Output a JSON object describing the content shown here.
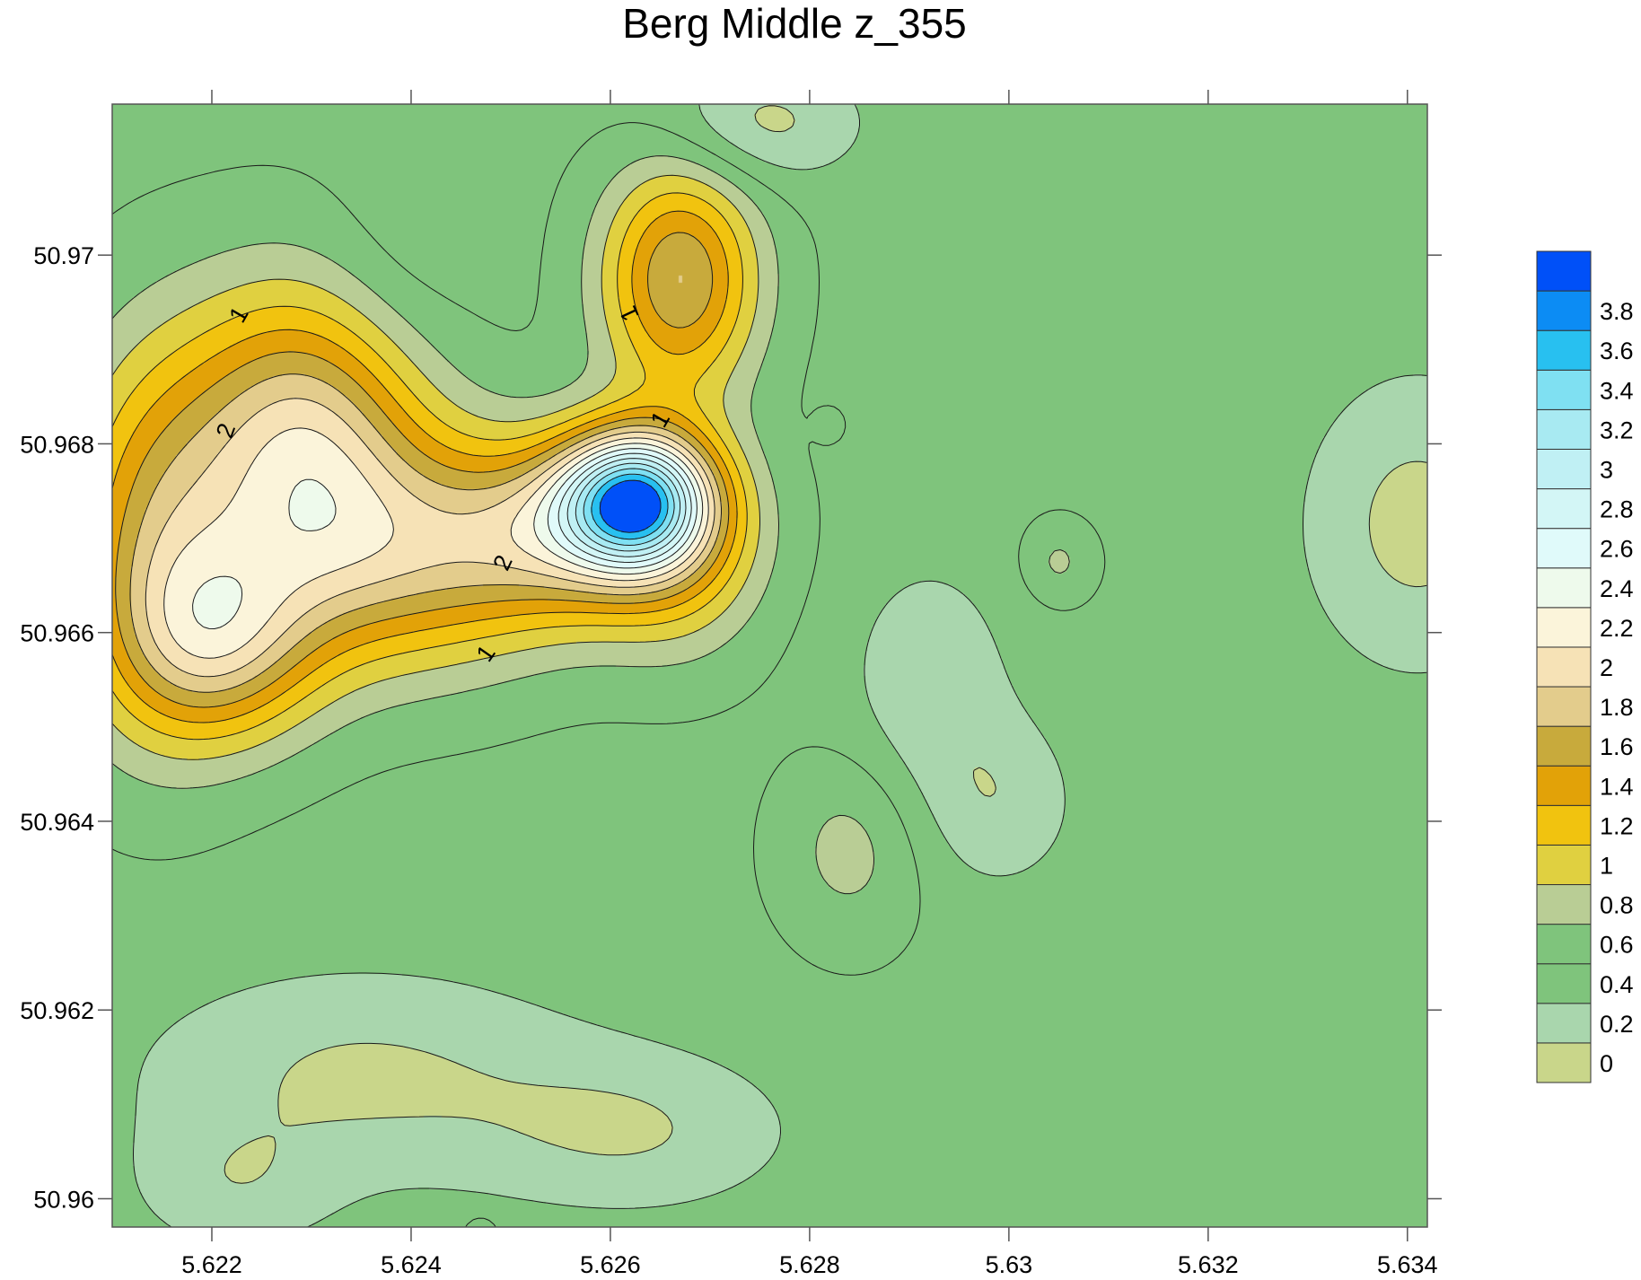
{
  "chart_data": {
    "type": "contour",
    "title": "Berg Middle z_355",
    "xlabel": "",
    "ylabel": "",
    "xlim": [
      5.621,
      5.6342
    ],
    "ylim": [
      50.9597,
      50.9716
    ],
    "x_ticks": [
      {
        "value": 5.622,
        "label": "5.622"
      },
      {
        "value": 5.624,
        "label": "5.624"
      },
      {
        "value": 5.626,
        "label": "5.626"
      },
      {
        "value": 5.628,
        "label": "5.628"
      },
      {
        "value": 5.63,
        "label": "5.63"
      },
      {
        "value": 5.632,
        "label": "5.632"
      },
      {
        "value": 5.634,
        "label": "5.634"
      }
    ],
    "y_ticks": [
      {
        "value": 50.96,
        "label": "50.96"
      },
      {
        "value": 50.962,
        "label": "50.962"
      },
      {
        "value": 50.964,
        "label": "50.964"
      },
      {
        "value": 50.966,
        "label": "50.966"
      },
      {
        "value": 50.968,
        "label": "50.968"
      },
      {
        "value": 50.97,
        "label": "50.97"
      }
    ],
    "grid": false,
    "legend": "colorbar-right",
    "levels": [
      {
        "value": 0,
        "label": "0",
        "color": "#c9d68a"
      },
      {
        "value": 0.2,
        "label": "0.2",
        "color": "#a9d6ad"
      },
      {
        "value": 0.4,
        "label": "0.4",
        "color": "#7fc47c"
      },
      {
        "value": 0.6,
        "label": "0.6",
        "color": "#7fc47c"
      },
      {
        "value": 0.8,
        "label": "0.8",
        "color": "#b9cd95"
      },
      {
        "value": 1.0,
        "label": "1",
        "color": "#e0d040"
      },
      {
        "value": 1.2,
        "label": "1.2",
        "color": "#f1c30f"
      },
      {
        "value": 1.4,
        "label": "1.4",
        "color": "#e2a208"
      },
      {
        "value": 1.6,
        "label": "1.6",
        "color": "#c8aa3c"
      },
      {
        "value": 1.8,
        "label": "1.8",
        "color": "#e3cc8c"
      },
      {
        "value": 2.0,
        "label": "2",
        "color": "#f6e2b6"
      },
      {
        "value": 2.2,
        "label": "2.2",
        "color": "#fbf4da"
      },
      {
        "value": 2.4,
        "label": "2.4",
        "color": "#eefaec"
      },
      {
        "value": 2.6,
        "label": "2.6",
        "color": "#e0fafa"
      },
      {
        "value": 2.8,
        "label": "2.8",
        "color": "#d3f6f6"
      },
      {
        "value": 3.0,
        "label": "3",
        "color": "#c0f0f4"
      },
      {
        "value": 3.2,
        "label": "3.2",
        "color": "#a8eaf2"
      },
      {
        "value": 3.4,
        "label": "3.4",
        "color": "#7fe0f2"
      },
      {
        "value": 3.6,
        "label": "3.6",
        "color": "#28c0f0"
      },
      {
        "value": 3.8,
        "label": "3.8",
        "color": "#0c8cf4"
      }
    ],
    "legend_top_color": "#0050f8",
    "contour_labels": [
      {
        "text": "1",
        "x": 5.62227,
        "y": 50.96937,
        "rotate": -60
      },
      {
        "text": "2",
        "x": 5.62214,
        "y": 50.96814,
        "rotate": -70
      },
      {
        "text": "1",
        "x": 5.6265,
        "y": 50.96826,
        "rotate": -60
      },
      {
        "text": "2",
        "x": 5.62492,
        "y": 50.96674,
        "rotate": -65
      },
      {
        "text": "1",
        "x": 5.62475,
        "y": 50.96578,
        "rotate": -55
      },
      {
        "text": "1",
        "x": 5.62619,
        "y": 50.96938,
        "rotate": -115
      }
    ],
    "bumps": [
      {
        "x": 5.6229,
        "y": 50.96802,
        "a": 1.45,
        "sx": 0.00085,
        "sy": 0.00115
      },
      {
        "x": 5.6221,
        "y": 50.9659,
        "a": 1.1,
        "sx": 0.0007,
        "sy": 0.00075
      },
      {
        "x": 5.6214,
        "y": 50.967,
        "a": 0.9,
        "sx": 0.00065,
        "sy": 0.0014
      },
      {
        "x": 5.624,
        "y": 50.9668,
        "a": 1.0,
        "sx": 0.0011,
        "sy": 0.00085
      },
      {
        "x": 5.62625,
        "y": 50.96742,
        "a": 2.4,
        "sx": 0.00052,
        "sy": 0.0005
      },
      {
        "x": 5.6256,
        "y": 50.9671,
        "a": 1.1,
        "sx": 0.00085,
        "sy": 0.00065
      },
      {
        "x": 5.6267,
        "y": 50.9669,
        "a": 0.6,
        "sx": 0.0006,
        "sy": 0.0008
      },
      {
        "x": 5.6267,
        "y": 50.96975,
        "a": 1.25,
        "sx": 0.00055,
        "sy": 0.00085
      },
      {
        "x": 5.6284,
        "y": 50.9637,
        "a": 0.32,
        "sx": 0.0005,
        "sy": 0.0007
      },
      {
        "x": 5.6305,
        "y": 50.96675,
        "a": 0.28,
        "sx": 0.00025,
        "sy": 0.0003
      },
      {
        "x": 5.6282,
        "y": 50.9682,
        "a": 0.15,
        "sx": 0.0001,
        "sy": 0.00012
      },
      {
        "x": 5.6235,
        "y": 50.9613,
        "a": -0.38,
        "sx": 0.0016,
        "sy": 0.0008
      },
      {
        "x": 5.6263,
        "y": 50.9607,
        "a": -0.32,
        "sx": 0.0011,
        "sy": 0.0006
      },
      {
        "x": 5.6222,
        "y": 50.9601,
        "a": -0.25,
        "sx": 0.0007,
        "sy": 0.0005
      },
      {
        "x": 5.6292,
        "y": 50.9655,
        "a": -0.32,
        "sx": 0.00055,
        "sy": 0.00085
      },
      {
        "x": 5.6299,
        "y": 50.9642,
        "a": -0.3,
        "sx": 0.00055,
        "sy": 0.00065
      },
      {
        "x": 5.6341,
        "y": 50.96715,
        "a": -0.42,
        "sx": 0.0008,
        "sy": 0.0011
      },
      {
        "x": 5.6275,
        "y": 50.9714,
        "a": -0.42,
        "sx": 0.0007,
        "sy": 0.00045
      },
      {
        "x": 5.6238,
        "y": 50.96975,
        "a": -0.15,
        "sx": 0.0006,
        "sy": 0.0008
      },
      {
        "x": 5.6247,
        "y": 50.95965,
        "a": 0.28,
        "sx": 0.00012,
        "sy": 0.00012
      }
    ],
    "base_value": 0.55
  }
}
